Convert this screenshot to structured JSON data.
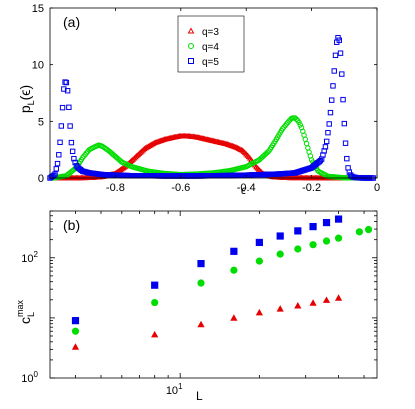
{
  "chart_data": [
    {
      "panel": "(a)",
      "type": "scatter",
      "ylabel": "p",
      "ylabel_sub": "L",
      "ylabel_arg": "(ϵ)",
      "xlabel": "ϵ",
      "xlim": [
        -1.0,
        0.0
      ],
      "ylim": [
        0,
        15
      ],
      "x_ticks": [
        -0.8,
        -0.6,
        -0.4,
        -0.2,
        0
      ],
      "x_tick_labels": [
        "-0.8",
        "-0.6",
        "-0.4",
        "-0.2",
        "0"
      ],
      "y_ticks": [
        0,
        5,
        10,
        15
      ],
      "y_tick_labels": [
        "0",
        "5",
        "10",
        "15"
      ],
      "legend_position": "top-center",
      "series": [
        {
          "name": "q=3",
          "marker": "triangle",
          "color": "#e60000",
          "x": [
            -0.98,
            -0.92,
            -0.88,
            -0.84,
            -0.8,
            -0.77,
            -0.74,
            -0.71,
            -0.68,
            -0.65,
            -0.62,
            -0.6,
            -0.58,
            -0.55,
            -0.52,
            -0.49,
            -0.46,
            -0.43,
            -0.41,
            -0.39,
            -0.37,
            -0.35,
            -0.32,
            -0.28,
            -0.2,
            -0.1,
            -0.02
          ],
          "y": [
            0,
            0,
            0.02,
            0.1,
            0.4,
            1.0,
            1.8,
            2.6,
            3.1,
            3.4,
            3.6,
            3.7,
            3.7,
            3.6,
            3.4,
            3.2,
            3.0,
            2.7,
            2.4,
            1.8,
            1.0,
            0.4,
            0.1,
            0.02,
            0,
            0,
            0
          ]
        },
        {
          "name": "q=4",
          "marker": "circle",
          "color": "#00dd00",
          "x": [
            -0.99,
            -0.95,
            -0.92,
            -0.9,
            -0.88,
            -0.86,
            -0.85,
            -0.84,
            -0.82,
            -0.8,
            -0.78,
            -0.75,
            -0.7,
            -0.65,
            -0.6,
            -0.55,
            -0.5,
            -0.45,
            -0.4,
            -0.36,
            -0.33,
            -0.31,
            -0.29,
            -0.27,
            -0.26,
            -0.25,
            -0.24,
            -0.23,
            -0.22,
            -0.21,
            -0.2,
            -0.18,
            -0.15,
            -0.1,
            -0.02
          ],
          "y": [
            0,
            0.2,
            0.9,
            1.8,
            2.5,
            2.8,
            2.9,
            2.8,
            2.4,
            1.9,
            1.4,
            1.0,
            0.6,
            0.4,
            0.3,
            0.35,
            0.45,
            0.65,
            1.0,
            1.6,
            2.4,
            3.3,
            4.3,
            5.0,
            5.3,
            5.3,
            5.0,
            4.4,
            3.5,
            2.5,
            1.6,
            0.6,
            0.15,
            0.02,
            0
          ]
        },
        {
          "name": "q=5",
          "marker": "square",
          "color": "#0000ee",
          "x": [
            -1.0,
            -0.985,
            -0.975,
            -0.968,
            -0.962,
            -0.958,
            -0.953,
            -0.948,
            -0.944,
            -0.94,
            -0.935,
            -0.928,
            -0.92,
            -0.91,
            -0.9,
            -0.88,
            -0.84,
            -0.8,
            -0.75,
            -0.7,
            -0.65,
            -0.6,
            -0.55,
            -0.5,
            -0.45,
            -0.4,
            -0.35,
            -0.3,
            -0.25,
            -0.2,
            -0.17,
            -0.155,
            -0.145,
            -0.138,
            -0.132,
            -0.127,
            -0.123,
            -0.119,
            -0.116,
            -0.113,
            -0.11,
            -0.107,
            -0.104,
            -0.1,
            -0.096,
            -0.092,
            -0.088,
            -0.082,
            -0.075,
            -0.06,
            -0.04,
            -0.01
          ],
          "y": [
            0,
            0.3,
            1.5,
            3.5,
            6.0,
            7.8,
            8.6,
            8.3,
            7.0,
            5.2,
            3.2,
            1.8,
            1.1,
            0.8,
            0.6,
            0.45,
            0.3,
            0.25,
            0.2,
            0.2,
            0.18,
            0.18,
            0.18,
            0.2,
            0.22,
            0.25,
            0.3,
            0.35,
            0.45,
            0.9,
            1.6,
            3.0,
            5.0,
            7.0,
            9.0,
            10.8,
            12.0,
            12.4,
            12.3,
            11.6,
            10.4,
            8.8,
            7.0,
            4.8,
            3.0,
            1.6,
            0.8,
            0.3,
            0.1,
            0.02,
            0,
            0
          ]
        }
      ]
    },
    {
      "panel": "(b)",
      "type": "scatter",
      "scale": "log-log",
      "ylabel": "c",
      "ylabel_sub": "L",
      "ylabel_sup": "max",
      "xlabel": "L",
      "xlim": [
        3.2,
        56
      ],
      "ylim": [
        1,
        600
      ],
      "x_tick_labels": [
        {
          "base": "10",
          "exp": "1"
        }
      ],
      "y_tick_labels": [
        {
          "base": "10",
          "exp": "0"
        },
        {
          "base": "10",
          "exp": "2"
        }
      ],
      "series": [
        {
          "name": "q=5",
          "marker": "square",
          "color": "#0000ee",
          "x": [
            4,
            8,
            12,
            16,
            20,
            24,
            28,
            32,
            36,
            40
          ],
          "y": [
            9,
            35,
            80,
            128,
            180,
            230,
            280,
            330,
            385,
            440
          ]
        },
        {
          "name": "q=4",
          "marker": "circle",
          "color": "#00dd00",
          "x": [
            4,
            8,
            12,
            16,
            20,
            24,
            28,
            32,
            36,
            40,
            48,
            52
          ],
          "y": [
            6,
            18,
            38,
            62,
            88,
            115,
            140,
            165,
            190,
            212,
            270,
            295
          ]
        },
        {
          "name": "q=3",
          "marker": "triangle",
          "color": "#e60000",
          "x": [
            4,
            8,
            12,
            16,
            20,
            24,
            28,
            32,
            36,
            40
          ],
          "y": [
            3.3,
            5.3,
            7.8,
            10,
            12.3,
            14.2,
            16,
            17.8,
            19.8,
            21.5
          ]
        }
      ]
    }
  ]
}
